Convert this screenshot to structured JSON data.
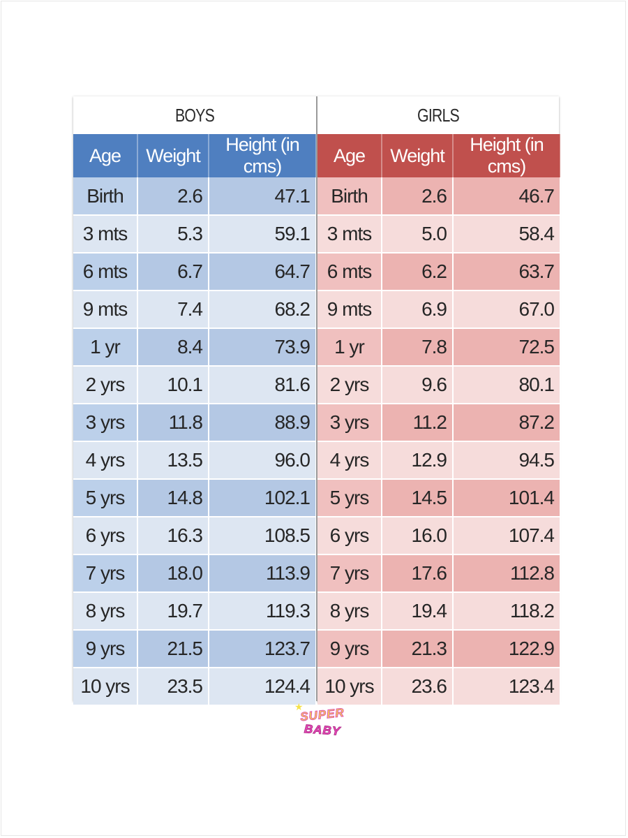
{
  "boys": {
    "title": "BOYS",
    "headers": [
      "Age",
      "Weight",
      "Height (in cms)"
    ],
    "rows": [
      [
        "Birth",
        "2.6",
        "47.1"
      ],
      [
        "3 mts",
        "5.3",
        "59.1"
      ],
      [
        "6 mts",
        "6.7",
        "64.7"
      ],
      [
        "9 mts",
        "7.4",
        "68.2"
      ],
      [
        "1 yr",
        "8.4",
        "73.9"
      ],
      [
        "2 yrs",
        "10.1",
        "81.6"
      ],
      [
        "3 yrs",
        "11.8",
        "88.9"
      ],
      [
        "4 yrs",
        "13.5",
        "96.0"
      ],
      [
        "5 yrs",
        "14.8",
        "102.1"
      ],
      [
        "6 yrs",
        "16.3",
        "108.5"
      ],
      [
        "7 yrs",
        "18.0",
        "113.9"
      ],
      [
        "8 yrs",
        "19.7",
        "119.3"
      ],
      [
        "9 yrs",
        "21.5",
        "123.7"
      ],
      [
        "10 yrs",
        "23.5",
        "124.4"
      ]
    ]
  },
  "girls": {
    "title": "GIRLS",
    "headers": [
      "Age",
      "Weight",
      "Height (in cms)"
    ],
    "rows": [
      [
        "Birth",
        "2.6",
        "46.7"
      ],
      [
        "3 mts",
        "5.0",
        "58.4"
      ],
      [
        "6 mts",
        "6.2",
        "63.7"
      ],
      [
        "9 mts",
        "6.9",
        "67.0"
      ],
      [
        "1 yr",
        "7.8",
        "72.5"
      ],
      [
        "2 yrs",
        "9.6",
        "80.1"
      ],
      [
        "3 yrs",
        "11.2",
        "87.2"
      ],
      [
        "4 yrs",
        "12.9",
        "94.5"
      ],
      [
        "5 yrs",
        "14.5",
        "101.4"
      ],
      [
        "6 yrs",
        "16.0",
        "107.4"
      ],
      [
        "7 yrs",
        "17.6",
        "112.8"
      ],
      [
        "8 yrs",
        "19.4",
        "118.2"
      ],
      [
        "9 yrs",
        "21.3",
        "122.9"
      ],
      [
        "10 yrs",
        "23.6",
        "123.4"
      ]
    ]
  },
  "logo": {
    "line1": "SUPER",
    "line2": "BABY"
  },
  "colors": {
    "boys_header": "#4f7fc0",
    "girls_header": "#c0504d",
    "boys_band": "#b4c8e4",
    "girls_band": "#ecb3b1"
  }
}
